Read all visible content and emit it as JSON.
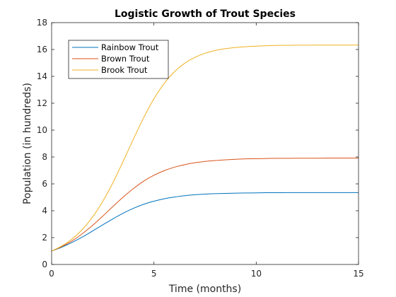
{
  "chart_data": {
    "type": "line",
    "title": "Logistic Growth of Trout Species",
    "xlabel": "Time (months)",
    "ylabel": "Population (in hundreds)",
    "xlim": [
      0,
      15
    ],
    "ylim": [
      0,
      18
    ],
    "xticks": [
      0,
      5,
      10,
      15
    ],
    "yticks": [
      0,
      2,
      4,
      6,
      8,
      10,
      12,
      14,
      16,
      18
    ],
    "grid": false,
    "legend_position": "top-left",
    "series": [
      {
        "name": "Rainbow Trout",
        "color": "#0072BD",
        "x": [
          0,
          0.5,
          1,
          1.5,
          2,
          2.5,
          3,
          3.5,
          4,
          4.5,
          5,
          5.5,
          6,
          6.5,
          7,
          7.5,
          8,
          8.5,
          9,
          9.5,
          10,
          10.5,
          11,
          11.5,
          12,
          12.5,
          13,
          13.5,
          14,
          14.5,
          15
        ],
        "values": [
          1.0,
          1.29,
          1.64,
          2.04,
          2.49,
          2.95,
          3.4,
          3.82,
          4.18,
          4.48,
          4.71,
          4.89,
          5.02,
          5.12,
          5.19,
          5.24,
          5.27,
          5.29,
          5.31,
          5.32,
          5.33,
          5.34,
          5.34,
          5.35,
          5.35,
          5.35,
          5.35,
          5.35,
          5.35,
          5.35,
          5.35
        ]
      },
      {
        "name": "Brown Trout",
        "color": "#D95319",
        "x": [
          0,
          0.5,
          1,
          1.5,
          2,
          2.5,
          3,
          3.5,
          4,
          4.5,
          5,
          5.5,
          6,
          6.5,
          7,
          7.5,
          8,
          8.5,
          9,
          9.5,
          10,
          10.5,
          11,
          11.5,
          12,
          12.5,
          13,
          13.5,
          14,
          14.5,
          15
        ],
        "values": [
          1.0,
          1.33,
          1.76,
          2.29,
          2.91,
          3.6,
          4.32,
          5.02,
          5.65,
          6.2,
          6.64,
          6.98,
          7.24,
          7.43,
          7.57,
          7.67,
          7.74,
          7.79,
          7.83,
          7.86,
          7.87,
          7.89,
          7.9,
          7.9,
          7.91,
          7.91,
          7.91,
          7.92,
          7.92,
          7.92,
          7.92
        ]
      },
      {
        "name": "Brook Trout",
        "color": "#EDB120",
        "x": [
          0,
          0.5,
          1,
          1.5,
          2,
          2.5,
          3,
          3.5,
          4,
          4.5,
          5,
          5.5,
          6,
          6.5,
          7,
          7.5,
          8,
          8.5,
          9,
          9.5,
          10,
          10.5,
          11,
          11.5,
          12,
          12.5,
          13,
          13.5,
          14,
          14.5,
          15
        ],
        "values": [
          1.0,
          1.38,
          1.9,
          2.6,
          3.53,
          4.7,
          6.1,
          7.69,
          9.34,
          10.93,
          12.33,
          13.47,
          14.34,
          14.97,
          15.41,
          15.72,
          15.93,
          16.06,
          16.15,
          16.21,
          16.25,
          16.28,
          16.3,
          16.31,
          16.32,
          16.32,
          16.33,
          16.33,
          16.33,
          16.33,
          16.33
        ]
      }
    ]
  }
}
